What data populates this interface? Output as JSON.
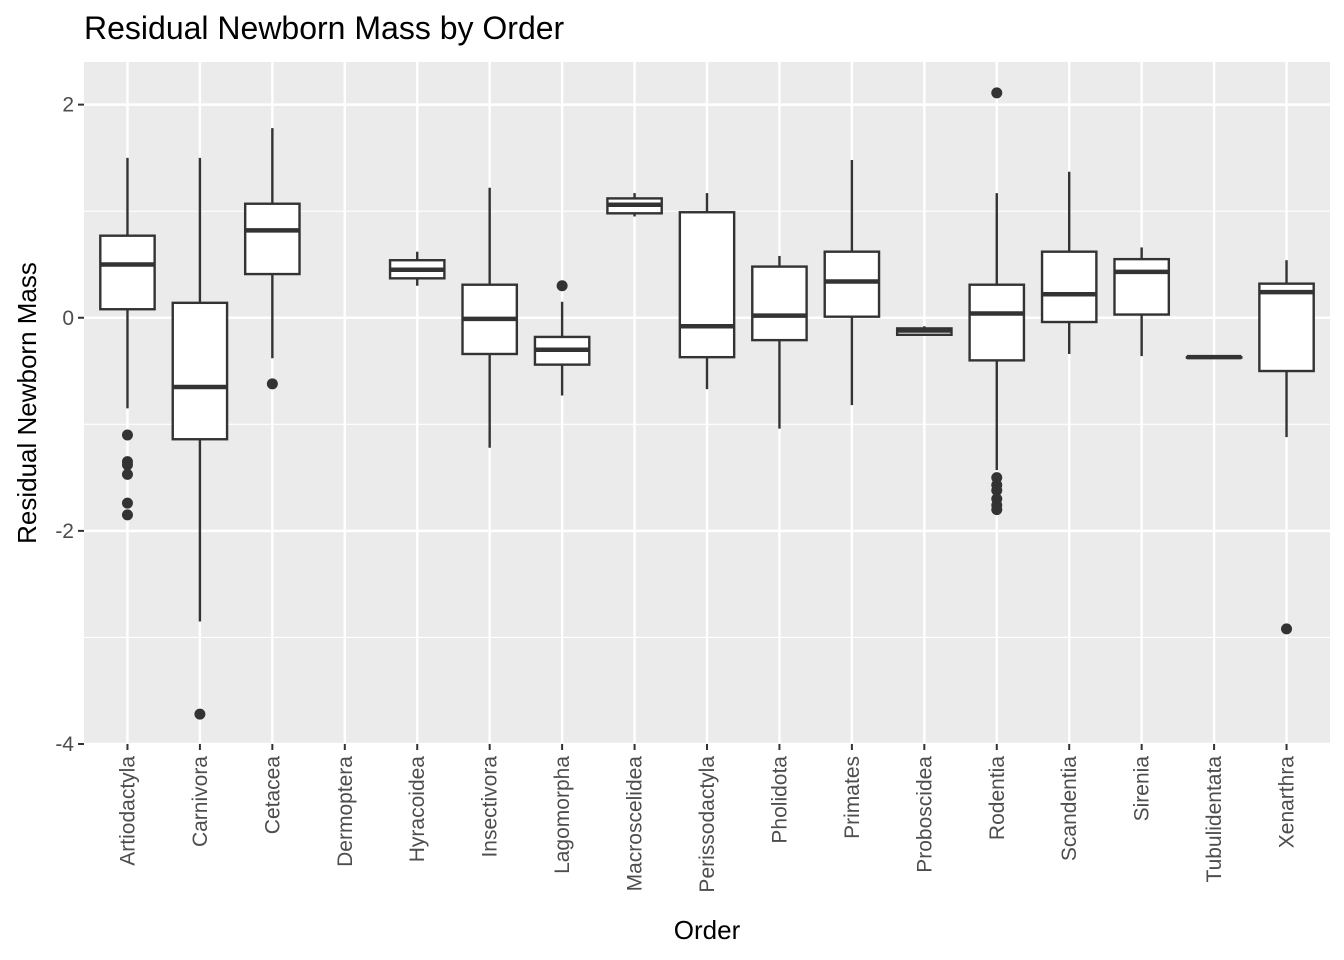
{
  "chart_data": {
    "type": "box",
    "title": "Residual Newborn Mass by Order",
    "xlabel": "Order",
    "ylabel": "Residual Newborn Mass",
    "ylim": [
      -4.0,
      2.4
    ],
    "yticks": [
      -4,
      -2,
      0,
      2
    ],
    "ytick_labels": [
      "-4",
      "-2",
      "0",
      "2"
    ],
    "grid": true,
    "legend": "none",
    "categories": [
      "Artiodactyla",
      "Carnivora",
      "Cetacea",
      "Dermoptera",
      "Hyracoidea",
      "Insectivora",
      "Lagomorpha",
      "Macroscelidea",
      "Perissodactyla",
      "Pholidota",
      "Primates",
      "Proboscidea",
      "Rodentia",
      "Scandentia",
      "Sirenia",
      "Tubulidentata",
      "Xenarthra"
    ],
    "boxes": [
      {
        "category": "Artiodactyla",
        "min": -0.85,
        "q1": 0.08,
        "median": 0.5,
        "q3": 0.77,
        "max": 1.5,
        "outliers": [
          -1.1,
          -1.35,
          -1.38,
          -1.47,
          -1.74,
          -1.85
        ]
      },
      {
        "category": "Carnivora",
        "min": -2.85,
        "q1": -1.14,
        "median": -0.65,
        "q3": 0.14,
        "max": 1.5,
        "outliers": [
          -3.72
        ]
      },
      {
        "category": "Cetacea",
        "min": -0.38,
        "q1": 0.41,
        "median": 0.82,
        "q3": 1.07,
        "max": 1.78,
        "outliers": [
          -0.62
        ]
      },
      {
        "category": "Dermoptera",
        "min": null,
        "q1": null,
        "median": null,
        "q3": null,
        "max": null,
        "outliers": []
      },
      {
        "category": "Hyracoidea",
        "min": 0.3,
        "q1": 0.37,
        "median": 0.45,
        "q3": 0.54,
        "max": 0.62,
        "outliers": []
      },
      {
        "category": "Insectivora",
        "min": -1.22,
        "q1": -0.34,
        "median": -0.01,
        "q3": 0.31,
        "max": 1.22,
        "outliers": []
      },
      {
        "category": "Lagomorpha",
        "min": -0.73,
        "q1": -0.44,
        "median": -0.3,
        "q3": -0.18,
        "max": 0.15,
        "outliers": [
          0.3
        ]
      },
      {
        "category": "Macroscelidea",
        "min": 0.95,
        "q1": 0.98,
        "median": 1.06,
        "q3": 1.12,
        "max": 1.17,
        "outliers": []
      },
      {
        "category": "Perissodactyla",
        "min": -0.67,
        "q1": -0.37,
        "median": -0.08,
        "q3": 0.99,
        "max": 1.17,
        "outliers": []
      },
      {
        "category": "Pholidota",
        "min": -1.04,
        "q1": -0.21,
        "median": 0.02,
        "q3": 0.48,
        "max": 0.58,
        "outliers": []
      },
      {
        "category": "Primates",
        "min": -0.82,
        "q1": 0.01,
        "median": 0.34,
        "q3": 0.62,
        "max": 1.48,
        "outliers": []
      },
      {
        "category": "Proboscidea",
        "min": -0.16,
        "q1": -0.16,
        "median": -0.12,
        "q3": -0.1,
        "max": -0.08,
        "outliers": []
      },
      {
        "category": "Rodentia",
        "min": -1.43,
        "q1": -0.4,
        "median": 0.04,
        "q3": 0.31,
        "max": 1.17,
        "outliers": [
          2.11,
          -1.5,
          -1.57,
          -1.62,
          -1.7,
          -1.76,
          -1.8
        ]
      },
      {
        "category": "Scandentia",
        "min": -0.34,
        "q1": -0.04,
        "median": 0.22,
        "q3": 0.62,
        "max": 1.37,
        "outliers": []
      },
      {
        "category": "Sirenia",
        "min": -0.36,
        "q1": 0.03,
        "median": 0.43,
        "q3": 0.55,
        "max": 0.66,
        "outliers": []
      },
      {
        "category": "Tubulidentata",
        "min": -0.37,
        "q1": -0.37,
        "median": -0.37,
        "q3": -0.37,
        "max": -0.37,
        "outliers": []
      },
      {
        "category": "Xenarthra",
        "min": -1.12,
        "q1": -0.5,
        "median": 0.24,
        "q3": 0.32,
        "max": 0.54,
        "outliers": [
          -2.92
        ]
      }
    ],
    "colors": {
      "panel_background": "#ebebeb",
      "grid": "#ffffff",
      "box_fill": "#ffffff",
      "box_stroke": "#333333",
      "tick_text": "#4d4d4d",
      "tick_mark": "#333333"
    }
  }
}
